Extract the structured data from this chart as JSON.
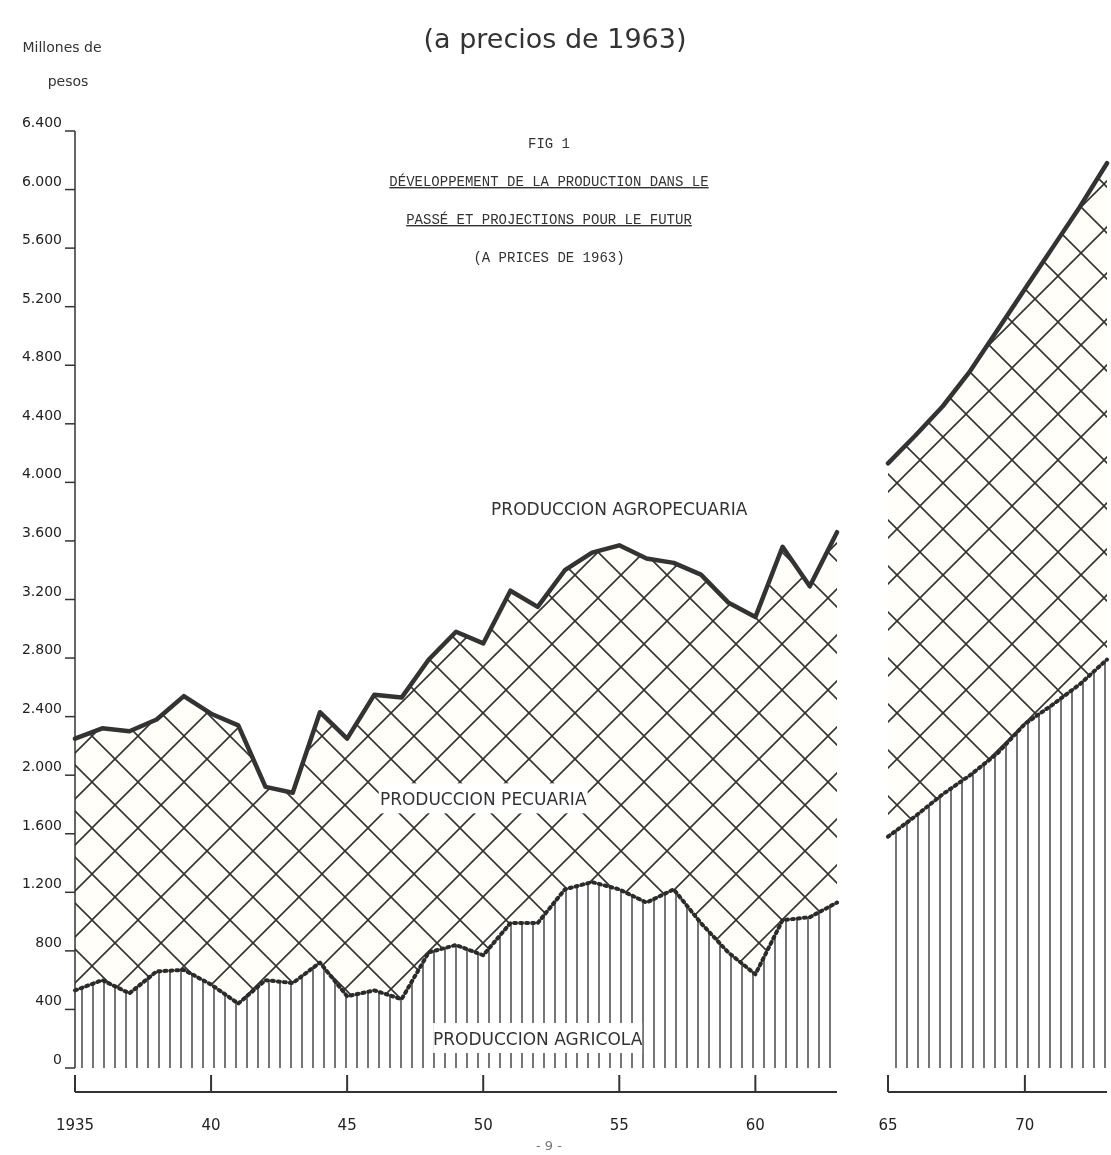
{
  "chart_data": [
    {
      "type": "area",
      "title": "(a precios de 1963)",
      "ylabel": "Millones de pesos",
      "stacked": true,
      "grid": false,
      "x": [
        1935,
        1936,
        1937,
        1938,
        1939,
        1940,
        1941,
        1942,
        1943,
        1944,
        1945,
        1946,
        1947,
        1948,
        1949,
        1950,
        1951,
        1952,
        1953,
        1954,
        1955,
        1956,
        1957,
        1958,
        1959,
        1960,
        1961,
        1962,
        1963
      ],
      "series": [
        {
          "name": "PRODUCCION AGRICOLA",
          "color": "#2b2b2b",
          "line_style": "dotted",
          "values": [
            530,
            600,
            510,
            660,
            670,
            570,
            440,
            600,
            580,
            720,
            490,
            530,
            470,
            790,
            840,
            770,
            990,
            990,
            1220,
            1270,
            1220,
            1130,
            1220,
            990,
            790,
            640,
            1010,
            1030,
            1130
          ]
        },
        {
          "name": "PRODUCCION PECUARIA",
          "color": "#333333",
          "line_style": "solid",
          "values": [
            1720,
            1720,
            1790,
            1720,
            1870,
            1850,
            1900,
            1320,
            1300,
            1710,
            1760,
            2020,
            2060,
            2000,
            2140,
            2130,
            2270,
            2160,
            2180,
            2250,
            2350,
            2350,
            2230,
            2380,
            2390,
            2440,
            2550,
            2260,
            2530
          ]
        }
      ],
      "xlim": [
        1935,
        1963
      ],
      "xticks": [
        1935,
        {
          "value": 1940,
          "label": "40"
        },
        {
          "value": 1945,
          "label": "45"
        },
        {
          "value": 1950,
          "label": "50"
        },
        {
          "value": 1955,
          "label": "55"
        },
        {
          "value": 1960,
          "label": "60"
        }
      ],
      "ylim": [
        0,
        6400
      ],
      "yticks": [
        0,
        400,
        800,
        {
          "value": 1200,
          "label": "1.200"
        },
        {
          "value": 1600,
          "label": "1.600"
        },
        {
          "value": 2000,
          "label": "2.000"
        },
        {
          "value": 2400,
          "label": "2.400"
        },
        {
          "value": 2800,
          "label": "2.800"
        },
        {
          "value": 3200,
          "label": "3.200"
        },
        {
          "value": 3600,
          "label": "3.600"
        },
        {
          "value": 4000,
          "label": "4.000"
        },
        {
          "value": 4400,
          "label": "4.400"
        },
        {
          "value": 4800,
          "label": "4.800"
        },
        {
          "value": 5200,
          "label": "5.200"
        },
        {
          "value": 5600,
          "label": "5.600"
        },
        {
          "value": 6000,
          "label": "6.000"
        },
        {
          "value": 6400,
          "label": "6.400"
        }
      ],
      "annotations": [
        "FIG 1",
        "DÉVELOPPEMENT DE LA PRODUCTION DANS LE",
        "PASSÉ ET PROJECTIONS POUR LE FUTUR",
        "(A PRICES DE 1963)",
        "PRODUCCION AGROPECUARIA",
        "- 9 -"
      ]
    },
    {
      "type": "area",
      "stacked": true,
      "grid": false,
      "tick_labels": "x",
      "x": [
        1965,
        1966,
        1967,
        1968,
        1969,
        1970,
        1971,
        1972,
        1973
      ],
      "series": [
        {
          "color": "#2b2b2b",
          "line_style": "dotted",
          "values": [
            1580,
            1720,
            1870,
            2000,
            2150,
            2350,
            2480,
            2620,
            2790
          ]
        },
        {
          "color": "#333333",
          "line_style": "solid",
          "values": [
            2550,
            2600,
            2650,
            2760,
            2890,
            2970,
            3120,
            3260,
            3390
          ]
        }
      ],
      "xlim": [
        1965,
        1973
      ],
      "xticks": [
        {
          "value": 1965,
          "label": "65"
        },
        {
          "value": 1970,
          "label": "70"
        }
      ],
      "ylim": [
        0,
        6400
      ],
      "yticks": [
        0,
        400,
        800,
        1200,
        1600,
        2000,
        2400,
        2800,
        3200,
        3600,
        4000,
        4400,
        4800,
        5200,
        5600,
        6000,
        6400
      ]
    }
  ]
}
